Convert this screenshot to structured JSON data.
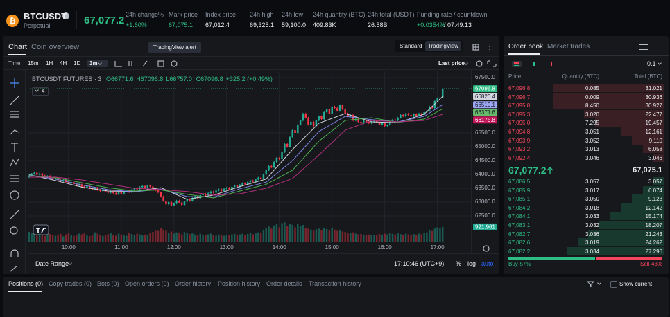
{
  "header": {
    "symbol": "BTCUSDT",
    "contract": "Perpetual",
    "last_price": "67,077.2",
    "last_color": "#2ebd85",
    "stats": [
      {
        "label": "24h change%",
        "value": "+1.60%",
        "color": "#2ebd85"
      },
      {
        "label": "Mark price",
        "value": "67,075.1",
        "color": "#2ebd85"
      },
      {
        "label": "Index price",
        "value": "67,012.4",
        "color": "#eaecef"
      },
      {
        "label": "24h high",
        "value": "69,325.1",
        "color": "#eaecef"
      },
      {
        "label": "24h low",
        "value": "59,100.0",
        "color": "#eaecef"
      },
      {
        "label": "24h quantity (BTC)",
        "value": "409.83K",
        "color": "#eaecef"
      },
      {
        "label": "24h total (USDT)",
        "value": "26.58B",
        "color": "#eaecef"
      }
    ],
    "funding": {
      "label": "Funding rate / countdown",
      "rate": "+0.0354%",
      "countdown": "/ 07:49:13"
    }
  },
  "chart_panel": {
    "tabs": [
      "Chart",
      "Coin overview"
    ],
    "tooltip": "TradingView alert",
    "views": [
      "Standard",
      "TradingView"
    ],
    "intervals": [
      "Time",
      "15m",
      "1H",
      "4H",
      "1D",
      "3m"
    ],
    "price_mode": "Last price",
    "legend_title": "BTCUSDT FUTURES · 3",
    "legend_values": [
      "O66771.6",
      "H67096.8",
      "L66757.0",
      "C67096.8",
      "+325.2 (+0.49%)"
    ],
    "indicator_count": "4",
    "date_range": "Date Range",
    "clock": "17:10:46 (UTC+9)",
    "scale_options": [
      "%",
      "log",
      "auto"
    ]
  },
  "chart_data": {
    "type": "candlestick",
    "up_color": "#22ab94",
    "down_color": "#f23645",
    "open": [
      63900,
      63950,
      64020,
      64060,
      63990,
      64030,
      63960,
      63900,
      63940,
      63870,
      63820,
      63860,
      63790,
      63750,
      63800,
      63720,
      63680,
      63720,
      63650,
      63600,
      63640,
      63560,
      63520,
      63580,
      63500,
      63460,
      63520,
      63440,
      63400,
      63460,
      63380,
      63340,
      63400,
      63320,
      63280,
      63350,
      63300,
      63380,
      63420,
      63360,
      63450,
      63500,
      63460,
      63540,
      63580,
      63520,
      63600,
      63560,
      63480,
      63420,
      63350,
      63200,
      63050,
      62920,
      63000,
      62880,
      62950,
      63050,
      62980,
      62900,
      63020,
      63100,
      63050,
      63150,
      63200,
      63140,
      63250,
      63300,
      63240,
      63320,
      63380,
      63340,
      63420,
      63460,
      63400,
      63480,
      63520,
      63460,
      63550,
      63600,
      63560,
      63620,
      63680,
      63640,
      63720,
      63780,
      63740,
      63820,
      63880,
      63850,
      64000,
      64150,
      64300,
      64250,
      64450,
      64600,
      64550,
      64800,
      65100,
      65000,
      65350,
      65600,
      65500,
      65800,
      65950,
      66200,
      66050,
      65800,
      65900,
      65750,
      65950,
      66100,
      66000,
      66250,
      66350,
      66200,
      66450,
      66400,
      66300,
      66500,
      66350,
      66200,
      66100,
      66150,
      65950,
      66000,
      65900,
      65850,
      65950,
      65900,
      65850,
      65900,
      65950,
      65880,
      65800,
      65850,
      65750,
      65780,
      65900,
      65980,
      65950,
      66050,
      66150,
      66100,
      66200,
      66150,
      66100,
      66180,
      66120,
      66200,
      66150,
      66250,
      66300,
      66450,
      66400,
      66650,
      66750,
      66771.6
    ],
    "high": [
      63980,
      64050,
      64090,
      64090,
      64060,
      64060,
      63990,
      63970,
      63970,
      63900,
      63890,
      63890,
      63820,
      63830,
      63830,
      63750,
      63750,
      63750,
      63680,
      63670,
      63670,
      63590,
      63610,
      63610,
      63530,
      63550,
      63550,
      63470,
      63490,
      63490,
      63410,
      63430,
      63430,
      63350,
      63380,
      63380,
      63410,
      63450,
      63450,
      63480,
      63530,
      63530,
      63570,
      63610,
      63610,
      63630,
      63630,
      63590,
      63510,
      63450,
      63380,
      63230,
      63080,
      63030,
      63030,
      62980,
      63080,
      63080,
      63010,
      63050,
      63130,
      63130,
      63180,
      63230,
      63230,
      63280,
      63330,
      63330,
      63350,
      63410,
      63410,
      63450,
      63490,
      63490,
      63510,
      63550,
      63550,
      63580,
      63630,
      63630,
      63650,
      63710,
      63710,
      63750,
      63810,
      63810,
      63850,
      63910,
      63910,
      64030,
      64180,
      64330,
      64330,
      64480,
      64630,
      64630,
      64830,
      65130,
      65130,
      65380,
      65630,
      65630,
      65830,
      65980,
      66230,
      66230,
      66080,
      65930,
      65930,
      65980,
      66130,
      66130,
      66280,
      66380,
      66380,
      66480,
      66480,
      66430,
      66530,
      66530,
      66380,
      66230,
      66180,
      66180,
      66030,
      66030,
      65930,
      65980,
      65980,
      65930,
      65930,
      65980,
      65980,
      65910,
      65880,
      65880,
      65810,
      65930,
      66010,
      66010,
      66080,
      66180,
      66180,
      66230,
      66230,
      66180,
      66210,
      66210,
      66230,
      66230,
      66280,
      66330,
      66480,
      66480,
      66680,
      66780,
      66800,
      67096.8
    ],
    "low": [
      63870,
      63920,
      63990,
      63960,
      63960,
      63930,
      63870,
      63870,
      63840,
      63790,
      63790,
      63760,
      63720,
      63720,
      63690,
      63650,
      63650,
      63620,
      63570,
      63570,
      63530,
      63490,
      63490,
      63470,
      63430,
      63430,
      63410,
      63370,
      63370,
      63350,
      63310,
      63310,
      63290,
      63250,
      63250,
      63270,
      63270,
      63350,
      63330,
      63330,
      63420,
      63430,
      63430,
      63510,
      63490,
      63490,
      63530,
      63450,
      63390,
      63320,
      63170,
      63020,
      62890,
      62890,
      62850,
      62850,
      62920,
      62950,
      62870,
      62870,
      62990,
      63020,
      63020,
      63120,
      63110,
      63110,
      63220,
      63210,
      63210,
      63290,
      63310,
      63310,
      63390,
      63370,
      63370,
      63450,
      63430,
      63430,
      63520,
      63530,
      63530,
      63590,
      63610,
      63610,
      63690,
      63710,
      63710,
      63790,
      63820,
      63820,
      63970,
      64120,
      64220,
      64220,
      64420,
      64520,
      64520,
      64770,
      64970,
      64970,
      65320,
      65470,
      65470,
      65770,
      65920,
      66020,
      65770,
      65770,
      65720,
      65720,
      65920,
      65970,
      65970,
      66220,
      66170,
      66170,
      66370,
      66270,
      66270,
      66320,
      66170,
      66070,
      66070,
      65920,
      65920,
      65870,
      65820,
      65820,
      65870,
      65820,
      65820,
      65870,
      65850,
      65770,
      65770,
      65720,
      65720,
      65750,
      65870,
      65920,
      65920,
      66020,
      66070,
      66070,
      66120,
      66070,
      66070,
      66090,
      66090,
      66120,
      66120,
      66220,
      66270,
      66370,
      66370,
      66620,
      66720,
      66757
    ],
    "close": [
      63950,
      64020,
      64060,
      63990,
      64030,
      63960,
      63900,
      63940,
      63870,
      63820,
      63860,
      63790,
      63750,
      63800,
      63720,
      63680,
      63720,
      63650,
      63600,
      63640,
      63560,
      63520,
      63580,
      63500,
      63460,
      63520,
      63440,
      63400,
      63460,
      63380,
      63340,
      63400,
      63320,
      63280,
      63350,
      63300,
      63380,
      63420,
      63360,
      63450,
      63500,
      63460,
      63540,
      63580,
      63520,
      63600,
      63560,
      63480,
      63420,
      63350,
      63200,
      63050,
      62920,
      63000,
      62880,
      62950,
      63050,
      62980,
      62900,
      63020,
      63100,
      63050,
      63150,
      63200,
      63140,
      63250,
      63300,
      63240,
      63320,
      63380,
      63340,
      63420,
      63460,
      63400,
      63480,
      63520,
      63460,
      63550,
      63600,
      63560,
      63620,
      63680,
      63640,
      63720,
      63780,
      63740,
      63820,
      63880,
      63850,
      64000,
      64150,
      64300,
      64250,
      64450,
      64600,
      64550,
      64800,
      65100,
      65000,
      65350,
      65600,
      65500,
      65800,
      65950,
      66200,
      66050,
      65800,
      65900,
      65750,
      65950,
      66100,
      66000,
      66250,
      66350,
      66200,
      66450,
      66400,
      66300,
      66500,
      66350,
      66200,
      66100,
      66150,
      65950,
      66000,
      65900,
      65850,
      65950,
      65900,
      65850,
      65900,
      65950,
      65880,
      65800,
      65850,
      65750,
      65780,
      65900,
      65980,
      65950,
      66050,
      66150,
      66100,
      66200,
      66150,
      66100,
      66180,
      66120,
      66200,
      66150,
      66250,
      66300,
      66450,
      66400,
      66650,
      66750,
      66771.6,
      67096.8
    ],
    "volume": [
      620,
      540,
      480,
      410,
      520,
      450,
      380,
      430,
      500,
      460,
      390,
      420,
      510,
      360,
      470,
      540,
      430,
      380,
      450,
      520,
      480,
      560,
      410,
      370,
      440,
      600,
      520,
      450,
      380,
      420,
      490,
      540,
      460,
      400,
      520,
      470,
      430,
      390,
      560,
      500,
      450,
      520,
      480,
      410,
      470,
      430,
      560,
      620,
      700,
      680,
      840,
      760,
      690,
      580,
      650,
      520,
      600,
      540,
      480,
      610,
      560,
      490,
      530,
      470,
      440,
      510,
      460,
      420,
      480,
      520,
      450,
      400,
      470,
      430,
      390,
      460,
      420,
      480,
      510,
      440,
      470,
      520,
      450,
      500,
      560,
      480,
      530,
      600,
      540,
      720,
      880,
      950,
      820,
      1010,
      1080,
      900,
      1150,
      1200,
      980,
      1100,
      1050,
      900,
      1120,
      980,
      1040,
      870,
      820,
      760,
      700,
      780,
      820,
      740,
      860,
      800,
      720,
      880,
      760,
      690,
      740,
      650,
      620,
      580,
      540,
      600,
      520,
      480,
      500,
      460,
      430,
      470,
      450,
      420,
      460,
      500,
      440,
      520,
      480,
      560,
      510,
      470,
      530,
      490,
      460,
      520,
      480,
      440,
      500,
      460,
      520,
      480,
      560,
      600,
      720,
      680,
      820,
      900,
      860,
      921.961
    ],
    "xlim": [
      -0.5,
      168
    ],
    "xticks": [
      {
        "value": 15,
        "label": "10:00"
      },
      {
        "value": 35,
        "label": "11:00"
      },
      {
        "value": 55,
        "label": "12:00"
      },
      {
        "value": 75,
        "label": "13:00"
      },
      {
        "value": 95,
        "label": "14:00"
      },
      {
        "value": 115,
        "label": "15:00"
      },
      {
        "value": 135,
        "label": "16:00"
      },
      {
        "value": 155,
        "label": "17:00"
      }
    ],
    "ylim": [
      61550,
      67725
    ],
    "yticks": [
      {
        "value": 67500,
        "label": "67500.0"
      },
      {
        "value": 65500,
        "label": "65500.0"
      },
      {
        "value": 65000,
        "label": "65000.0"
      },
      {
        "value": 64500,
        "label": "64500.0"
      },
      {
        "value": 64000,
        "label": "64000.0"
      },
      {
        "value": 63500,
        "label": "63500.0"
      },
      {
        "value": 63000,
        "label": "63000.0"
      },
      {
        "value": 62500,
        "label": "62500.0"
      }
    ],
    "vlim": [
      0,
      1250
    ],
    "grid": true,
    "current_price_line": true,
    "series": [
      {
        "color": "#d1d4dc",
        "x": [
          0,
          10,
          20,
          30,
          40,
          50,
          60,
          70,
          80,
          90,
          100,
          110,
          120,
          130,
          140,
          150,
          157
        ],
        "values": [
          63990,
          63780,
          63540,
          63400,
          63380,
          63520,
          63100,
          63250,
          63560,
          63830,
          64900,
          65850,
          66200,
          65900,
          65870,
          66180,
          66820.4
        ]
      },
      {
        "color": "#7e88e6",
        "x": [
          0,
          10,
          20,
          30,
          40,
          50,
          60,
          70,
          80,
          90,
          100,
          110,
          120,
          130,
          140,
          150,
          157
        ],
        "values": [
          63980,
          63830,
          63620,
          63450,
          63370,
          63470,
          63200,
          63180,
          63480,
          63720,
          64500,
          65550,
          66100,
          65980,
          65900,
          66100,
          66519.1
        ]
      },
      {
        "color": "#4caf50",
        "x": [
          0,
          10,
          20,
          30,
          40,
          50,
          60,
          70,
          80,
          90,
          100,
          110,
          120,
          130,
          140,
          150,
          157
        ],
        "values": [
          63960,
          63880,
          63700,
          63520,
          63400,
          63440,
          63280,
          63150,
          63400,
          63640,
          64150,
          65200,
          65950,
          66050,
          65880,
          66000,
          66371.6
        ]
      },
      {
        "color": "#b0307a",
        "x": [
          0,
          10,
          20,
          30,
          40,
          50,
          60,
          70,
          80,
          90,
          100,
          110,
          120,
          130,
          140,
          150,
          157
        ],
        "values": [
          63900,
          63900,
          63800,
          63650,
          63500,
          63450,
          63380,
          63250,
          63300,
          63500,
          63850,
          64700,
          65600,
          65950,
          65900,
          65950,
          66175.8
        ]
      }
    ],
    "price_tags": [
      {
        "value": 67096.8,
        "color": "#2ebd85",
        "text_color": "#ffffff"
      },
      {
        "value": 66820.4,
        "color": "#d1d4dc",
        "text_color": "#131722"
      },
      {
        "value": 66519.1,
        "color": "#9fa8f5",
        "text_color": "#131722"
      },
      {
        "value": 66371.6,
        "color": "#66bb6a",
        "text_color": "#131722"
      },
      {
        "value": 66175.8,
        "color": "#c2185b",
        "text_color": "#ffffff"
      }
    ],
    "volume_tag": {
      "value": 921.961,
      "color": "#22ab94",
      "text_color": "#ffffff"
    }
  },
  "order_book": {
    "tabs": [
      "Order book",
      "Market trades"
    ],
    "precision": "0.1",
    "columns": [
      "Price",
      "Quantity (BTC)",
      "Total (BTC)"
    ],
    "ask_color": "#f6465d",
    "bid_color": "#2ebd85",
    "asks": [
      [
        "67,096.8",
        "0.085",
        "31.021"
      ],
      [
        "67,096.7",
        "0.009",
        "30.936"
      ],
      [
        "67,095.8",
        "8.450",
        "30.927"
      ],
      [
        "67,095.3",
        "3.020",
        "22.477"
      ],
      [
        "67,095.0",
        "7.295",
        "19.457"
      ],
      [
        "67,094.8",
        "3.051",
        "12.161"
      ],
      [
        "67,093.9",
        "3.052",
        "9.110"
      ],
      [
        "67,093.2",
        "3.013",
        "6.058"
      ],
      [
        "67,092.4",
        "3.046",
        "3.046"
      ]
    ],
    "mid_price": "67,077.2",
    "mark_price": "67,075.1",
    "bids": [
      [
        "67,086.5",
        "3.057",
        "3.057"
      ],
      [
        "67,085.9",
        "3.017",
        "6.074"
      ],
      [
        "67,085.1",
        "3.050",
        "9.123"
      ],
      [
        "67,084.2",
        "3.018",
        "12.142"
      ],
      [
        "67,084.1",
        "3.033",
        "15.174"
      ],
      [
        "67,083.1",
        "3.032",
        "18.207"
      ],
      [
        "67,082.7",
        "3.036",
        "21.243"
      ],
      [
        "67,082.6",
        "3.019",
        "24.262"
      ],
      [
        "67,082.2",
        "3.034",
        "27.296"
      ]
    ],
    "buy": {
      "value": 57,
      "label": "Buy-57%"
    },
    "sell": {
      "value": 43,
      "label": "Sell-43%"
    }
  },
  "bottom_panel": {
    "tabs": [
      "Positions (0)",
      "Copy trades (0)",
      "Bots (0)",
      "Open orders (0)",
      "Order history",
      "Position history",
      "Order details",
      "Transaction history"
    ],
    "show_current": "Show current"
  }
}
